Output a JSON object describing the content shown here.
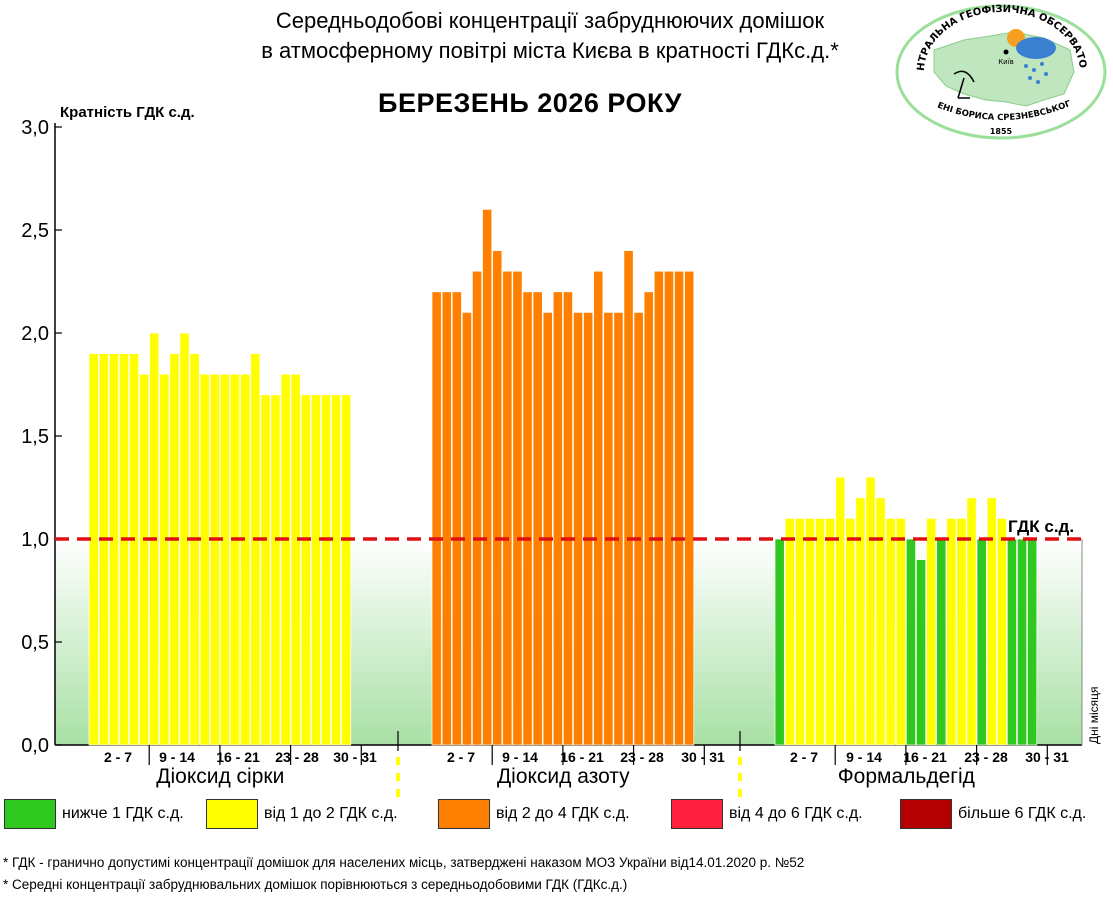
{
  "header": {
    "title_line1": "Середньодобові концентрації забруднюючих домішок",
    "title_line2": "в атмосферному повітрі міста Києва в кратності ГДКс.д.*",
    "subtitle": "БЕРЕЗЕНЬ 2026 РОКУ"
  },
  "logo": {
    "arc_top": "ЦЕНТРАЛЬНА ГЕОФІЗИЧНА ОБСЕРВАТОРІЯ",
    "arc_bottom": "ІМЕНІ БОРИСА СРЕЗНЕВСЬКОГО",
    "city": "Київ",
    "year": "1855"
  },
  "colors": {
    "below_1": "#2ec81e",
    "1_to_2": "#ffff00",
    "2_to_4": "#ff8000",
    "4_to_6": "#ff1f3f",
    "above_6": "#b30000",
    "limit_line": "#e01010"
  },
  "chart_data": {
    "type": "bar",
    "title": "БЕРЕЗЕНЬ 2026 РОКУ",
    "ylabel": "Кратність ГДК с.д.",
    "vertical_right_label": "Дні місяця",
    "ylim": [
      0,
      3.0
    ],
    "yticks": [
      "0,0",
      "0,5",
      "1,0",
      "1,5",
      "2,0",
      "2,5",
      "3,0"
    ],
    "limit_value": 1.0,
    "limit_label": "ГДК с.д.",
    "day_group_labels": [
      "2 - 7",
      "9 - 14",
      "16 - 21",
      "23 - 28",
      "30 - 31"
    ],
    "series": [
      {
        "name": "Діоксид сірки",
        "bar_color": "#ffff00",
        "values": [
          1.9,
          1.9,
          1.9,
          1.9,
          1.9,
          1.8,
          2.0,
          1.8,
          1.9,
          2.0,
          1.9,
          1.8,
          1.8,
          1.8,
          1.8,
          1.8,
          1.9,
          1.7,
          1.7,
          1.8,
          1.8,
          1.7,
          1.7,
          1.7,
          1.7,
          1.7
        ]
      },
      {
        "name": "Діоксид азоту",
        "bar_color": "#ff8000",
        "values": [
          2.2,
          2.2,
          2.2,
          2.1,
          2.3,
          2.6,
          2.4,
          2.3,
          2.3,
          2.2,
          2.2,
          2.1,
          2.2,
          2.2,
          2.1,
          2.1,
          2.3,
          2.1,
          2.1,
          2.4,
          2.1,
          2.2,
          2.3,
          2.3,
          2.3,
          2.3
        ]
      },
      {
        "name": "Формальдегід",
        "bar_color": "#ffff00",
        "values": [
          1.0,
          1.1,
          1.1,
          1.1,
          1.1,
          1.1,
          1.3,
          1.1,
          1.2,
          1.3,
          1.2,
          1.1,
          1.1,
          1.0,
          0.9,
          1.1,
          1.0,
          1.1,
          1.1,
          1.2,
          1.0,
          1.2,
          1.1,
          1.0,
          1.0,
          1.0
        ]
      }
    ]
  },
  "legend": [
    {
      "label": "нижче 1 ГДК с.д.",
      "color": "#2ec81e"
    },
    {
      "label": "від 1 до 2 ГДК с.д.",
      "color": "#ffff00"
    },
    {
      "label": "від 2 до 4 ГДК с.д.",
      "color": "#ff8000"
    },
    {
      "label": "від 4 до 6 ГДК с.д.",
      "color": "#ff1f3f"
    },
    {
      "label": "більше 6 ГДК с.д.",
      "color": "#b30000"
    }
  ],
  "footnotes": [
    "* ГДК - гранично допустимі концентрації домішок для населених місць, затверджені наказом МОЗ України від14.01.2020 р. №52",
    "* Середні концентрації забруднювальних домішок порівнюються з середньодобовими  ГДК (ГДКс.д.)"
  ]
}
